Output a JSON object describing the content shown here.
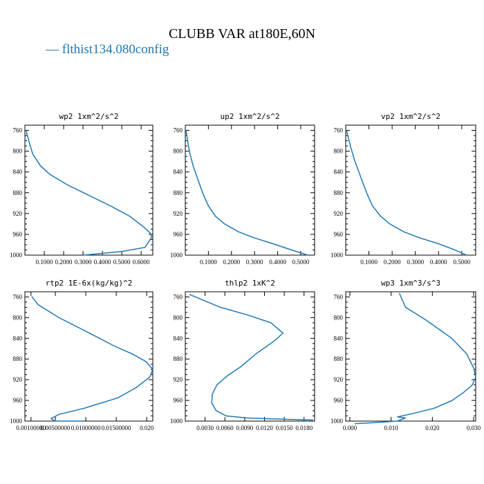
{
  "figure": {
    "title": "CLUBB VAR at180E,60N",
    "legend_label": "— flthist134.080config",
    "series_color": "#1f77b4"
  },
  "chart_data": [
    {
      "type": "line",
      "title": "wp2  1xm^2/s^2",
      "xlim": [
        0.0,
        0.66
      ],
      "ylim": [
        1000,
        750
      ],
      "yticks": [
        760,
        800,
        840,
        880,
        920,
        960,
        1000
      ],
      "xticks": [
        0.1,
        0.2,
        0.3,
        0.4,
        0.5,
        0.6
      ],
      "xtick_labels": [
        "0.1000",
        "0.2000",
        "0.3000",
        "0.4000",
        "0.5000",
        "0.6000"
      ],
      "points": [
        [
          0.005,
          759
        ],
        [
          0.02,
          780
        ],
        [
          0.04,
          805
        ],
        [
          0.08,
          828
        ],
        [
          0.13,
          845
        ],
        [
          0.22,
          865
        ],
        [
          0.33,
          885
        ],
        [
          0.44,
          905
        ],
        [
          0.54,
          925
        ],
        [
          0.61,
          945
        ],
        [
          0.648,
          958
        ],
        [
          0.655,
          965
        ],
        [
          0.62,
          985
        ],
        [
          0.5,
          993
        ],
        [
          0.3,
          1000
        ]
      ]
    },
    {
      "type": "line",
      "title": "up2  1xm^2/s^2",
      "xlim": [
        0.0,
        0.56
      ],
      "ylim": [
        1000,
        750
      ],
      "yticks": [
        760,
        800,
        840,
        880,
        920,
        960,
        1000
      ],
      "xticks": [
        0.1,
        0.2,
        0.3,
        0.4,
        0.5
      ],
      "xtick_labels": [
        "0.1000",
        "0.2000",
        "0.3000",
        "0.4000",
        "0.5000"
      ],
      "points": [
        [
          0.003,
          759
        ],
        [
          0.01,
          780
        ],
        [
          0.02,
          805
        ],
        [
          0.035,
          830
        ],
        [
          0.055,
          855
        ],
        [
          0.075,
          880
        ],
        [
          0.1,
          905
        ],
        [
          0.13,
          925
        ],
        [
          0.17,
          940
        ],
        [
          0.23,
          955
        ],
        [
          0.3,
          967
        ],
        [
          0.38,
          978
        ],
        [
          0.46,
          990
        ],
        [
          0.53,
          1000
        ]
      ]
    },
    {
      "type": "line",
      "title": "vp2  1xm^2/s^2",
      "xlim": [
        0.0,
        0.56
      ],
      "ylim": [
        1000,
        750
      ],
      "yticks": [
        760,
        800,
        840,
        880,
        920,
        960,
        1000
      ],
      "xticks": [
        0.1,
        0.2,
        0.3,
        0.4,
        0.5
      ],
      "xtick_labels": [
        "0.1000",
        "0.2000",
        "0.3000",
        "0.4000",
        "0.5000"
      ],
      "points": [
        [
          0.003,
          759
        ],
        [
          0.02,
          790
        ],
        [
          0.04,
          820
        ],
        [
          0.065,
          850
        ],
        [
          0.09,
          880
        ],
        [
          0.115,
          905
        ],
        [
          0.15,
          925
        ],
        [
          0.19,
          940
        ],
        [
          0.25,
          955
        ],
        [
          0.32,
          967
        ],
        [
          0.4,
          978
        ],
        [
          0.47,
          990
        ],
        [
          0.52,
          1000
        ]
      ]
    },
    {
      "type": "line",
      "title": "rtp2  1E-6x(kg/kg)^2",
      "xlim": [
        0.0,
        0.00021
      ],
      "ylim": [
        1000,
        750
      ],
      "yticks": [
        760,
        800,
        840,
        880,
        920,
        960,
        1000
      ],
      "xticks": [
        1e-05,
        5e-05,
        0.0001,
        0.00015,
        0.0002
      ],
      "xtick_labels": [
        "0.00100000",
        "0.00500000",
        "0.01000000",
        "0.01500000",
        "0.020"
      ],
      "points": [
        [
          1.12e-05,
          759
        ],
        [
          2.17e-05,
          775
        ],
        [
          5.6e-05,
          800
        ],
        [
          0.000106,
          830
        ],
        [
          0.000147,
          855
        ],
        [
          0.000176,
          870
        ],
        [
          0.000199,
          885
        ],
        [
          0.00021,
          900
        ],
        [
          0.000205,
          915
        ],
        [
          0.000183,
          935
        ],
        [
          0.000153,
          955
        ],
        [
          9.8e-05,
          975
        ],
        [
          5.6e-05,
          987
        ],
        [
          4.3e-05,
          995
        ],
        [
          4.9e-05,
          1000
        ],
        [
          7.1e-05,
          1000
        ],
        [
          9.5e-05,
          1000
        ]
      ]
    },
    {
      "type": "line",
      "title": "thlp2  1xK^2",
      "xlim": [
        0.0,
        0.0196
      ],
      "ylim": [
        1000,
        750
      ],
      "yticks": [
        760,
        800,
        840,
        880,
        920,
        960,
        1000
      ],
      "xticks": [
        0.003,
        0.006,
        0.009,
        0.012,
        0.015,
        0.018
      ],
      "xtick_labels": [
        "0.0030",
        "0.0060",
        "0.0090",
        "0.0120",
        "0.0150",
        "0.0180"
      ],
      "points": [
        [
          0.0006,
          755
        ],
        [
          0.0053,
          780
        ],
        [
          0.0095,
          795
        ],
        [
          0.013,
          810
        ],
        [
          0.0148,
          830
        ],
        [
          0.0135,
          845
        ],
        [
          0.0107,
          870
        ],
        [
          0.0084,
          895
        ],
        [
          0.0064,
          912
        ],
        [
          0.0048,
          930
        ],
        [
          0.0041,
          948
        ],
        [
          0.004,
          965
        ],
        [
          0.0047,
          980
        ],
        [
          0.0062,
          990
        ],
        [
          0.0094,
          994
        ],
        [
          0.0138,
          996
        ],
        [
          0.0194,
          998
        ]
      ]
    },
    {
      "type": "line",
      "title": "wp3  1xm^3/s^3",
      "xlim": [
        -0.001,
        0.0305
      ],
      "ylim": [
        1000,
        750
      ],
      "yticks": [
        760,
        800,
        840,
        880,
        920,
        960,
        1000
      ],
      "xticks": [
        0.0,
        0.01,
        0.02,
        0.03
      ],
      "xtick_labels": [
        "0.000",
        "0.010",
        "0.020",
        "0.030"
      ],
      "points": [
        [
          0.012,
          753
        ],
        [
          0.0135,
          780
        ],
        [
          0.0185,
          805
        ],
        [
          0.0247,
          840
        ],
        [
          0.0283,
          870
        ],
        [
          0.03,
          897
        ],
        [
          0.0305,
          915
        ],
        [
          0.0297,
          930
        ],
        [
          0.0275,
          945
        ],
        [
          0.0248,
          960
        ],
        [
          0.0205,
          975
        ],
        [
          0.0155,
          985
        ],
        [
          0.0115,
          992
        ],
        [
          0.0135,
          994
        ],
        [
          0.0115,
          1000
        ],
        [
          0.006,
          1003
        ],
        [
          0.0012,
          1005
        ]
      ]
    }
  ]
}
